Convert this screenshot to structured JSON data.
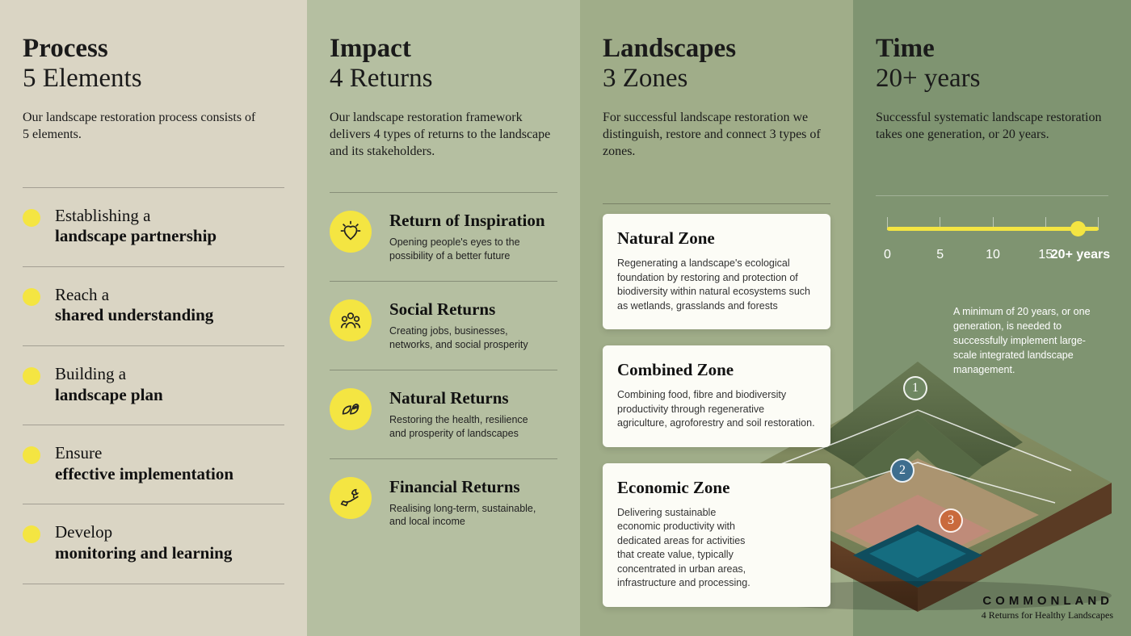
{
  "columns": {
    "process": {
      "title": "Process",
      "subtitle": "5 Elements",
      "desc": "Our landscape restoration process consists of 5 elements.",
      "bg_color": "#dad5c4",
      "dot_color": "#f4e542",
      "divider_color": "rgba(0,0,0,0.25)",
      "items": [
        {
          "light": "Establishing a",
          "bold": "landscape partnership"
        },
        {
          "light": "Reach a",
          "bold": "shared understanding"
        },
        {
          "light": "Building a",
          "bold": "landscape plan"
        },
        {
          "light": "Ensure",
          "bold": "effective implementation"
        },
        {
          "light": "Develop",
          "bold": "monitoring and learning"
        }
      ]
    },
    "impact": {
      "title": "Impact",
      "subtitle": "4 Returns",
      "desc": "Our landscape restoration framework delivers 4 types of returns to the landscape and its stakeholders.",
      "bg_color": "#b5bfa1",
      "icon_bg": "#f4e542",
      "items": [
        {
          "icon": "inspiration",
          "title": "Return of Inspiration",
          "body": "Opening people's eyes to the possibility of a better future"
        },
        {
          "icon": "social",
          "title": "Social Returns",
          "body": "Creating jobs, businesses, networks, and social prosperity"
        },
        {
          "icon": "natural",
          "title": "Natural Returns",
          "body": "Restoring the health, resilience and prosperity of landscapes"
        },
        {
          "icon": "financial",
          "title": "Financial Returns",
          "body": "Realising long-term, sustainable, and local income"
        }
      ]
    },
    "landscapes": {
      "title": "Landscapes",
      "subtitle": "3 Zones",
      "desc": "For successful landscape restoration we distinguish, restore and connect 3 types of zones.",
      "bg_color": "#a0ad89",
      "card_bg": "#fcfcf6",
      "zones": [
        {
          "title": "Natural Zone",
          "body": "Regenerating a landscape's ecological foundation by restoring and protection of biodiversity within natural ecosystems such as wetlands, grasslands and forests"
        },
        {
          "title": "Combined Zone",
          "body": "Combining food, fibre and biodiversity productivity through regenerative agriculture, agroforestry and soil restoration."
        },
        {
          "title": "Economic Zone",
          "body": "Delivering sustainable economic productivity with dedicated areas for activities that create value, typically concentrated in urban areas, infrastructure and processing."
        }
      ],
      "pins": [
        {
          "n": "1",
          "color": "#6f8762"
        },
        {
          "n": "2",
          "color": "#3e6e8e"
        },
        {
          "n": "3",
          "color": "#c96a3d"
        }
      ]
    },
    "time": {
      "title": "Time",
      "subtitle": "20+ years",
      "desc": "Successful systematic landscape restoration takes one generation, or 20 years.",
      "bg_color": "#7f9471",
      "track_color": "#f4e542",
      "tick_color": "rgba(255,255,255,0.5)",
      "label_color": "#ffffff",
      "ticks": [
        "0",
        "5",
        "10",
        "15",
        "20+ years"
      ],
      "note": "A minimum of 20 years, or one generation, is needed to successfully implement large-scale integrated landscape management."
    }
  },
  "illustration": {
    "mountain_color": "#5a6a47",
    "mid_color": "#7a845a",
    "low_color": "#a8926c",
    "urban_color": "#c28a7a",
    "sea_color": "#0f4d5e",
    "soil_color": "#6a4329",
    "soil_dark": "#4a2e1a"
  },
  "brand": {
    "name": "COMMONLAND",
    "tag": "4 Returns for Healthy Landscapes"
  }
}
